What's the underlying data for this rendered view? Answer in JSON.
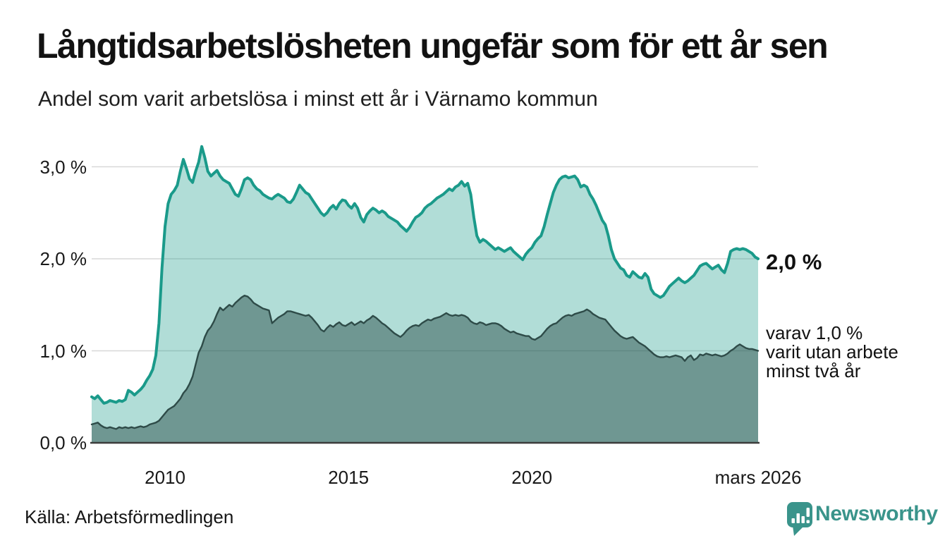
{
  "header": {
    "title": "Långtidsarbetslösheten ungefär som för ett år sen",
    "subtitle": "Andel som varit arbetslösa i minst ett år i Värnamo kommun"
  },
  "colors": {
    "accent_teal": "#1a9a8a",
    "light_fill": "#b0dad3",
    "dark_line": "#2e4b48",
    "dark_fill": "#6f9d97",
    "grid": "#d8d8d8",
    "axis": "#3c3c3c",
    "brand_teal": "#3a948b"
  },
  "annotations": {
    "primary": "2,0 %",
    "secondary": "varav 1,0 %\nvarit utan arbete\nminst två år"
  },
  "footer": {
    "source": "Källa: Arbetsförmedlingen",
    "brand": "Newsworthy"
  },
  "chart_data": {
    "type": "area",
    "title": "Långtidsarbetslösheten ungefär som för ett år sen",
    "subtitle": "Andel som varit arbetslösa i minst ett år i Värnamo kommun",
    "x_unit": "month",
    "x_start": "2008-01",
    "x_end": "2026-03",
    "ylim": [
      0,
      3.3
    ],
    "grid": "horizontal",
    "legend_position": "right-annotations",
    "y_ticks": [
      {
        "label": "0,0 %",
        "value": 0
      },
      {
        "label": "1,0 %",
        "value": 1
      },
      {
        "label": "2,0 %",
        "value": 2
      },
      {
        "label": "3,0 %",
        "value": 3
      }
    ],
    "x_ticks": [
      {
        "label": "2010",
        "year": 2010.0
      },
      {
        "label": "2015",
        "year": 2015.0
      },
      {
        "label": "2020",
        "year": 2020.0
      },
      {
        "label": "mars 2026",
        "year": 2026.1667
      }
    ],
    "series": [
      {
        "name": "Andel som varit arbetslösa i minst ett år",
        "final_label": "2,0 %",
        "final_value": 2.0,
        "line_color": "#1a9a8a",
        "fill_color": "rgba(26,154,138,0.34)",
        "values": [
          0.5,
          0.48,
          0.51,
          0.47,
          0.43,
          0.44,
          0.46,
          0.45,
          0.44,
          0.46,
          0.45,
          0.47,
          0.57,
          0.55,
          0.52,
          0.55,
          0.58,
          0.62,
          0.68,
          0.73,
          0.8,
          0.95,
          1.3,
          1.9,
          2.35,
          2.6,
          2.7,
          2.74,
          2.8,
          2.95,
          3.08,
          2.98,
          2.87,
          2.83,
          2.95,
          3.05,
          3.22,
          3.1,
          2.95,
          2.9,
          2.93,
          2.96,
          2.9,
          2.86,
          2.84,
          2.82,
          2.76,
          2.7,
          2.68,
          2.76,
          2.86,
          2.88,
          2.86,
          2.8,
          2.76,
          2.74,
          2.7,
          2.68,
          2.66,
          2.65,
          2.68,
          2.7,
          2.68,
          2.66,
          2.62,
          2.61,
          2.65,
          2.72,
          2.8,
          2.76,
          2.72,
          2.7,
          2.65,
          2.6,
          2.55,
          2.5,
          2.47,
          2.5,
          2.55,
          2.58,
          2.54,
          2.6,
          2.64,
          2.63,
          2.58,
          2.55,
          2.6,
          2.55,
          2.45,
          2.4,
          2.48,
          2.52,
          2.55,
          2.53,
          2.5,
          2.52,
          2.5,
          2.46,
          2.44,
          2.42,
          2.4,
          2.36,
          2.33,
          2.3,
          2.34,
          2.4,
          2.45,
          2.47,
          2.5,
          2.55,
          2.58,
          2.6,
          2.63,
          2.66,
          2.68,
          2.7,
          2.73,
          2.76,
          2.74,
          2.78,
          2.8,
          2.84,
          2.79,
          2.82,
          2.7,
          2.45,
          2.25,
          2.18,
          2.21,
          2.19,
          2.16,
          2.13,
          2.1,
          2.12,
          2.1,
          2.08,
          2.1,
          2.12,
          2.08,
          2.05,
          2.02,
          1.99,
          2.05,
          2.09,
          2.12,
          2.18,
          2.22,
          2.25,
          2.35,
          2.48,
          2.6,
          2.72,
          2.8,
          2.86,
          2.89,
          2.9,
          2.88,
          2.89,
          2.9,
          2.86,
          2.78,
          2.8,
          2.78,
          2.7,
          2.65,
          2.58,
          2.5,
          2.42,
          2.37,
          2.25,
          2.1,
          2.0,
          1.95,
          1.9,
          1.88,
          1.82,
          1.8,
          1.86,
          1.83,
          1.8,
          1.79,
          1.84,
          1.8,
          1.67,
          1.62,
          1.6,
          1.58,
          1.6,
          1.65,
          1.7,
          1.73,
          1.76,
          1.79,
          1.76,
          1.74,
          1.76,
          1.79,
          1.82,
          1.87,
          1.92,
          1.94,
          1.95,
          1.92,
          1.89,
          1.91,
          1.93,
          1.88,
          1.85,
          1.95,
          2.08,
          2.1,
          2.11,
          2.1,
          2.11,
          2.1,
          2.08,
          2.06,
          2.02,
          2.0
        ]
      },
      {
        "name": "varav varit utan arbete minst två år",
        "final_label": "varav 1,0 %",
        "final_value": 1.0,
        "line_color": "#2e4b48",
        "fill_color": "rgba(30,66,62,0.45)",
        "values": [
          0.2,
          0.21,
          0.22,
          0.19,
          0.17,
          0.16,
          0.17,
          0.16,
          0.15,
          0.17,
          0.16,
          0.17,
          0.16,
          0.17,
          0.16,
          0.17,
          0.18,
          0.17,
          0.18,
          0.2,
          0.21,
          0.22,
          0.24,
          0.28,
          0.32,
          0.36,
          0.38,
          0.4,
          0.44,
          0.48,
          0.54,
          0.58,
          0.64,
          0.72,
          0.85,
          0.98,
          1.05,
          1.15,
          1.22,
          1.26,
          1.32,
          1.4,
          1.47,
          1.44,
          1.47,
          1.5,
          1.48,
          1.52,
          1.55,
          1.58,
          1.6,
          1.59,
          1.56,
          1.52,
          1.5,
          1.48,
          1.46,
          1.45,
          1.44,
          1.3,
          1.33,
          1.36,
          1.38,
          1.4,
          1.43,
          1.43,
          1.42,
          1.41,
          1.4,
          1.39,
          1.38,
          1.39,
          1.36,
          1.32,
          1.28,
          1.23,
          1.21,
          1.25,
          1.28,
          1.26,
          1.29,
          1.31,
          1.28,
          1.27,
          1.29,
          1.31,
          1.28,
          1.3,
          1.32,
          1.3,
          1.33,
          1.35,
          1.38,
          1.36,
          1.33,
          1.3,
          1.28,
          1.25,
          1.22,
          1.19,
          1.17,
          1.15,
          1.18,
          1.22,
          1.25,
          1.27,
          1.28,
          1.27,
          1.3,
          1.32,
          1.34,
          1.33,
          1.35,
          1.36,
          1.37,
          1.39,
          1.41,
          1.39,
          1.38,
          1.39,
          1.38,
          1.39,
          1.38,
          1.36,
          1.32,
          1.3,
          1.29,
          1.31,
          1.3,
          1.28,
          1.29,
          1.3,
          1.3,
          1.29,
          1.27,
          1.24,
          1.22,
          1.2,
          1.21,
          1.19,
          1.18,
          1.17,
          1.16,
          1.16,
          1.13,
          1.12,
          1.14,
          1.16,
          1.2,
          1.24,
          1.27,
          1.29,
          1.3,
          1.33,
          1.36,
          1.38,
          1.39,
          1.38,
          1.4,
          1.41,
          1.42,
          1.43,
          1.45,
          1.43,
          1.4,
          1.38,
          1.36,
          1.35,
          1.34,
          1.3,
          1.26,
          1.22,
          1.19,
          1.16,
          1.14,
          1.13,
          1.14,
          1.15,
          1.12,
          1.09,
          1.07,
          1.05,
          1.02,
          0.99,
          0.96,
          0.94,
          0.93,
          0.93,
          0.94,
          0.93,
          0.94,
          0.95,
          0.94,
          0.93,
          0.89,
          0.93,
          0.95,
          0.9,
          0.92,
          0.96,
          0.95,
          0.97,
          0.96,
          0.95,
          0.96,
          0.95,
          0.94,
          0.95,
          0.97,
          1.0,
          1.02,
          1.05,
          1.07,
          1.05,
          1.03,
          1.02,
          1.02,
          1.01,
          1.0
        ]
      }
    ]
  }
}
